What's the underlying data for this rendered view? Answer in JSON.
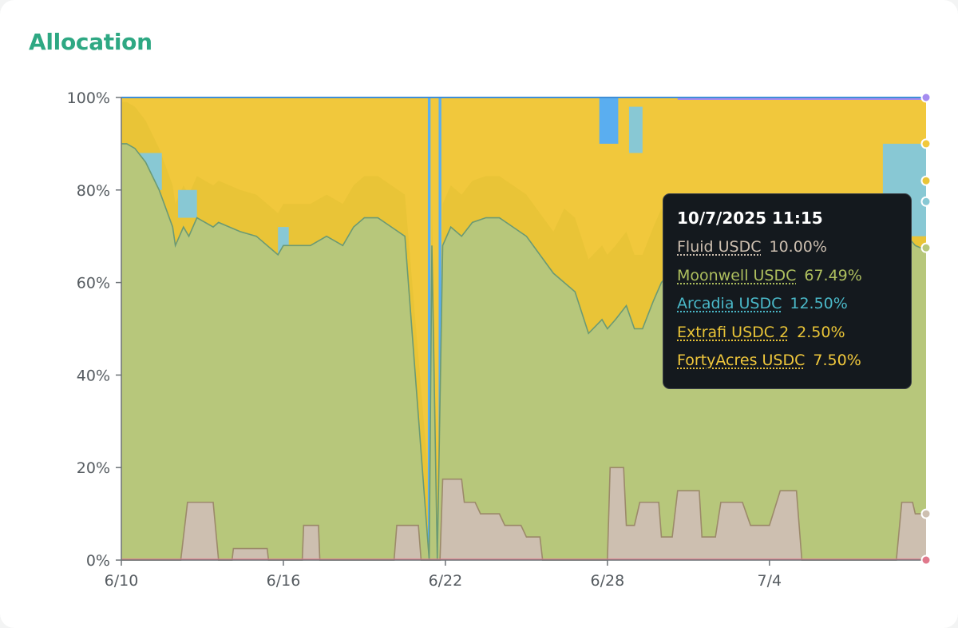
{
  "card": {
    "title": "Allocation"
  },
  "colors": {
    "moonwell": "#b7c77b",
    "moonwell_line": "#7f9640",
    "fluid": "#cdbfb0",
    "fluid_line": "#9c8a6a",
    "extrafi": "#e9c437",
    "fortyacres": "#f1c83c",
    "arcadia": "#88c8d4",
    "blue": "#5aaef0",
    "purple": "#a58cf0",
    "pink": "#e0788c",
    "axis": "#555b60",
    "title": "#2ea883"
  },
  "tooltip": {
    "date": "10/7/2025 11:15",
    "rows": [
      {
        "name": "Fluid USDC",
        "value": "10.00%",
        "color": "#cdbfb0"
      },
      {
        "name": "Moonwell USDC",
        "value": "67.49%",
        "color": "#aebf5e"
      },
      {
        "name": "Arcadia USDC",
        "value": "12.50%",
        "color": "#4ab8c8"
      },
      {
        "name": "Extrafi USDC 2",
        "value": "2.50%",
        "color": "#e9c437"
      },
      {
        "name": "FortyAcres USDC",
        "value": "7.50%",
        "color": "#f1c83c"
      }
    ]
  },
  "chart_data": {
    "type": "area",
    "stacked": true,
    "normalized": true,
    "y_ticks": [
      "0%",
      "20%",
      "40%",
      "60%",
      "80%",
      "100%"
    ],
    "x_ticks": [
      "6/10",
      "6/16",
      "6/22",
      "6/28",
      "7/4"
    ],
    "ylim": [
      0,
      100
    ],
    "x_unit": "days since 6/10",
    "xlim": [
      0,
      29.8
    ],
    "series": [
      {
        "name": "Fluid USDC",
        "color_key": "fluid",
        "x": [
          0,
          2.2,
          2.45,
          3.4,
          3.6,
          4.1,
          4.15,
          5.4,
          5.45,
          6.7,
          6.75,
          7.3,
          7.35,
          10.1,
          10.2,
          11.0,
          11.1,
          11.8,
          11.9,
          12.6,
          12.7,
          13.1,
          13.3,
          14.0,
          14.2,
          14.8,
          15.0,
          15.5,
          15.6,
          16.0,
          16.1,
          17.1,
          17.2,
          18.0,
          18.1,
          18.6,
          18.7,
          19.0,
          19.2,
          19.9,
          20.0,
          20.4,
          20.6,
          21.4,
          21.5,
          22.0,
          22.2,
          23.0,
          23.3,
          24.0,
          24.4,
          25.0,
          25.2,
          26.0,
          26.3,
          27.3,
          27.5,
          28.7,
          28.9,
          29.3,
          29.4,
          29.8
        ],
        "y": [
          0,
          0,
          12.5,
          12.5,
          0,
          0,
          2.5,
          2.5,
          0,
          0,
          7.5,
          7.5,
          0,
          0,
          7.5,
          7.5,
          0,
          0,
          17.5,
          17.5,
          12.5,
          12.5,
          10,
          10,
          7.5,
          7.5,
          5,
          5,
          0,
          0,
          0,
          0,
          0,
          0,
          20,
          20,
          7.5,
          7.5,
          12.5,
          12.5,
          5,
          5,
          15,
          15,
          5,
          5,
          12.5,
          12.5,
          7.5,
          7.5,
          15,
          15,
          0,
          0,
          0,
          0,
          0,
          0,
          12.5,
          12.5,
          10,
          10
        ]
      },
      {
        "name": "Moonwell USDC",
        "color_key": "moonwell",
        "x": [
          0,
          0.2,
          0.5,
          0.9,
          1.4,
          1.9,
          2.0,
          2.3,
          2.5,
          2.8,
          3.4,
          3.6,
          4.0,
          4.4,
          5.0,
          5.8,
          6.0,
          6.6,
          7.0,
          7.6,
          8.2,
          8.6,
          9.0,
          9.5,
          10.0,
          10.5,
          11.4,
          11.5,
          11.7,
          11.9,
          12.2,
          12.6,
          13.0,
          13.5,
          14.0,
          14.5,
          15.0,
          15.5,
          16.0,
          16.4,
          16.8,
          17.3,
          17.8,
          18.0,
          18.3,
          18.7,
          19.0,
          19.3,
          19.7,
          20.0,
          20.3,
          20.8,
          21.3,
          21.8,
          22.2,
          22.8,
          23.2,
          23.8,
          24.2,
          24.8,
          25.2,
          25.8,
          26.2,
          26.8,
          27.2,
          27.8,
          28.2,
          28.5,
          28.8,
          29.1,
          29.4,
          29.6,
          29.8
        ],
        "y": [
          90,
          90,
          89,
          86,
          80,
          72,
          68,
          72,
          70,
          74,
          72,
          73,
          72,
          71,
          70,
          66,
          68,
          68,
          68,
          70,
          68,
          72,
          74,
          74,
          72,
          70,
          0,
          68,
          0,
          68,
          72,
          70,
          73,
          74,
          74,
          72,
          70,
          66,
          62,
          60,
          58,
          49,
          52,
          50,
          52,
          55,
          50,
          50,
          56,
          60,
          62,
          60,
          62,
          64,
          65,
          66,
          67,
          67,
          67,
          68,
          67,
          68,
          67,
          68,
          67,
          68,
          67,
          68,
          67,
          70,
          68,
          67.49,
          67.49
        ]
      }
    ]
  }
}
